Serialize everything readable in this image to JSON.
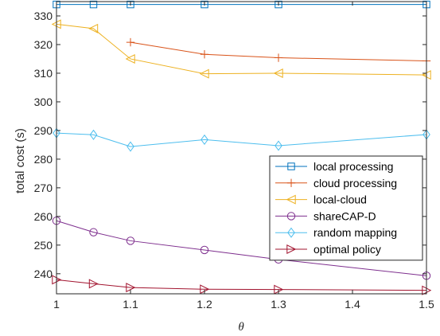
{
  "chart_data": {
    "type": "line",
    "xlabel": "θ",
    "ylabel": "total cost (s)",
    "xlim": [
      1,
      1.5
    ],
    "ylim": [
      233,
      335
    ],
    "xticks": [
      1,
      1.1,
      1.2,
      1.3,
      1.4,
      1.5
    ],
    "xtick_labels": [
      "1",
      "1.1",
      "1.2",
      "1.3",
      "1.4",
      "1.5"
    ],
    "yticks": [
      240,
      250,
      260,
      270,
      280,
      290,
      300,
      310,
      320,
      330
    ],
    "ytick_labels": [
      "240",
      "250",
      "260",
      "270",
      "280",
      "290",
      "300",
      "310",
      "320",
      "330"
    ],
    "grid": false,
    "legend_position": "bottom-right",
    "x": [
      1,
      1.05,
      1.1,
      1.2,
      1.3,
      1.5
    ],
    "series": [
      {
        "name": "local processing",
        "color": "#0072BD",
        "marker": "square",
        "values": [
          334,
          334,
          334,
          334,
          334,
          334
        ]
      },
      {
        "name": "cloud processing",
        "color": "#D95319",
        "marker": "plus",
        "x": [
          1.1,
          1.2,
          1.3,
          1.5
        ],
        "values": [
          320.8,
          316.6,
          315.4,
          314.3
        ]
      },
      {
        "name": "local-cloud",
        "color": "#EDB120",
        "marker": "triangle-left",
        "values": [
          327.1,
          325.6,
          315.0,
          309.8,
          310.0,
          309.4
        ]
      },
      {
        "name": "shareCAP-D",
        "color": "#7E2F8E",
        "marker": "circle",
        "values": [
          258.5,
          254.5,
          251.5,
          248.3,
          245.0,
          239.3
        ]
      },
      {
        "name": "random mapping",
        "color": "#4DBEEE",
        "marker": "diamond",
        "values": [
          289.1,
          288.5,
          284.4,
          286.8,
          284.7,
          288.6
        ]
      },
      {
        "name": "optimal policy",
        "color": "#A2142F",
        "marker": "triangle-right",
        "values": [
          237.9,
          236.5,
          235.2,
          234.6,
          234.5,
          234.2
        ]
      }
    ]
  }
}
